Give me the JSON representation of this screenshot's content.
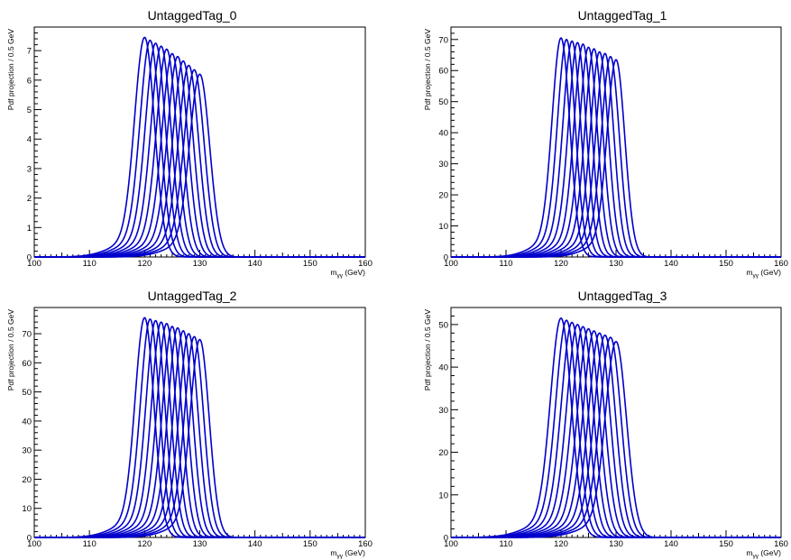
{
  "chart_data": [
    {
      "type": "line",
      "title": "UntaggedTag_0",
      "xlabel": "m",
      "xlabel_sub": "γγ",
      "xlabel_unit": " (GeV)",
      "ylabel": "Pdf projection / 0.5 GeV",
      "xlim": [
        100,
        160
      ],
      "ylim": [
        0,
        7.8
      ],
      "xticks": [
        100,
        110,
        120,
        130,
        140,
        150,
        160
      ],
      "yticks": [
        0,
        1,
        2,
        3,
        4,
        5,
        6,
        7
      ],
      "series_color": "#0000cc",
      "series": [
        {
          "mass": 120,
          "peak": 7.45
        },
        {
          "mass": 121,
          "peak": 7.35
        },
        {
          "mass": 122,
          "peak": 7.25
        },
        {
          "mass": 123,
          "peak": 7.15
        },
        {
          "mass": 124,
          "peak": 7.05
        },
        {
          "mass": 125,
          "peak": 6.9
        },
        {
          "mass": 126,
          "peak": 6.8
        },
        {
          "mass": 127,
          "peak": 6.65
        },
        {
          "mass": 128,
          "peak": 6.5
        },
        {
          "mass": 129,
          "peak": 6.35
        },
        {
          "mass": 130,
          "peak": 6.2
        }
      ],
      "width": 1.8
    },
    {
      "type": "line",
      "title": "UntaggedTag_1",
      "xlabel": "m",
      "xlabel_sub": "γγ",
      "xlabel_unit": " (GeV)",
      "ylabel": "Pdf projection / 0.5 GeV",
      "xlim": [
        100,
        160
      ],
      "ylim": [
        0,
        74
      ],
      "xticks": [
        100,
        110,
        120,
        130,
        140,
        150,
        160
      ],
      "yticks": [
        0,
        10,
        20,
        30,
        40,
        50,
        60,
        70
      ],
      "series_color": "#0000cc",
      "series": [
        {
          "mass": 120,
          "peak": 70.5
        },
        {
          "mass": 121,
          "peak": 70
        },
        {
          "mass": 122,
          "peak": 69.5
        },
        {
          "mass": 123,
          "peak": 69
        },
        {
          "mass": 124,
          "peak": 68.5
        },
        {
          "mass": 125,
          "peak": 67.5
        },
        {
          "mass": 126,
          "peak": 67
        },
        {
          "mass": 127,
          "peak": 66
        },
        {
          "mass": 128,
          "peak": 65.5
        },
        {
          "mass": 129,
          "peak": 64.5
        },
        {
          "mass": 130,
          "peak": 63.5
        }
      ],
      "width": 1.6
    },
    {
      "type": "line",
      "title": "UntaggedTag_2",
      "xlabel": "m",
      "xlabel_sub": "γγ",
      "xlabel_unit": " (GeV)",
      "ylabel": "Pdf projection / 0.5 GeV",
      "xlim": [
        100,
        160
      ],
      "ylim": [
        0,
        79
      ],
      "xticks": [
        100,
        110,
        120,
        130,
        140,
        150,
        160
      ],
      "yticks": [
        0,
        10,
        20,
        30,
        40,
        50,
        60,
        70
      ],
      "series_color": "#0000cc",
      "series": [
        {
          "mass": 120,
          "peak": 75.5
        },
        {
          "mass": 121,
          "peak": 75
        },
        {
          "mass": 122,
          "peak": 74.5
        },
        {
          "mass": 123,
          "peak": 74
        },
        {
          "mass": 124,
          "peak": 73.5
        },
        {
          "mass": 125,
          "peak": 72.5
        },
        {
          "mass": 126,
          "peak": 72
        },
        {
          "mass": 127,
          "peak": 71
        },
        {
          "mass": 128,
          "peak": 70
        },
        {
          "mass": 129,
          "peak": 69
        },
        {
          "mass": 130,
          "peak": 68
        }
      ],
      "width": 1.7
    },
    {
      "type": "line",
      "title": "UntaggedTag_3",
      "xlabel": "m",
      "xlabel_sub": "γγ",
      "xlabel_unit": " (GeV)",
      "ylabel": "Pdf projection / 0.5 GeV",
      "xlim": [
        100,
        160
      ],
      "ylim": [
        0,
        54
      ],
      "xticks": [
        100,
        110,
        120,
        130,
        140,
        150,
        160
      ],
      "yticks": [
        0,
        10,
        20,
        30,
        40,
        50
      ],
      "series_color": "#0000cc",
      "series": [
        {
          "mass": 120,
          "peak": 51.5
        },
        {
          "mass": 121,
          "peak": 51
        },
        {
          "mass": 122,
          "peak": 50.5
        },
        {
          "mass": 123,
          "peak": 50
        },
        {
          "mass": 124,
          "peak": 49.5
        },
        {
          "mass": 125,
          "peak": 49
        },
        {
          "mass": 126,
          "peak": 48.5
        },
        {
          "mass": 127,
          "peak": 48
        },
        {
          "mass": 128,
          "peak": 47.5
        },
        {
          "mass": 129,
          "peak": 47
        },
        {
          "mass": 130,
          "peak": 46
        }
      ],
      "width": 1.9
    }
  ]
}
